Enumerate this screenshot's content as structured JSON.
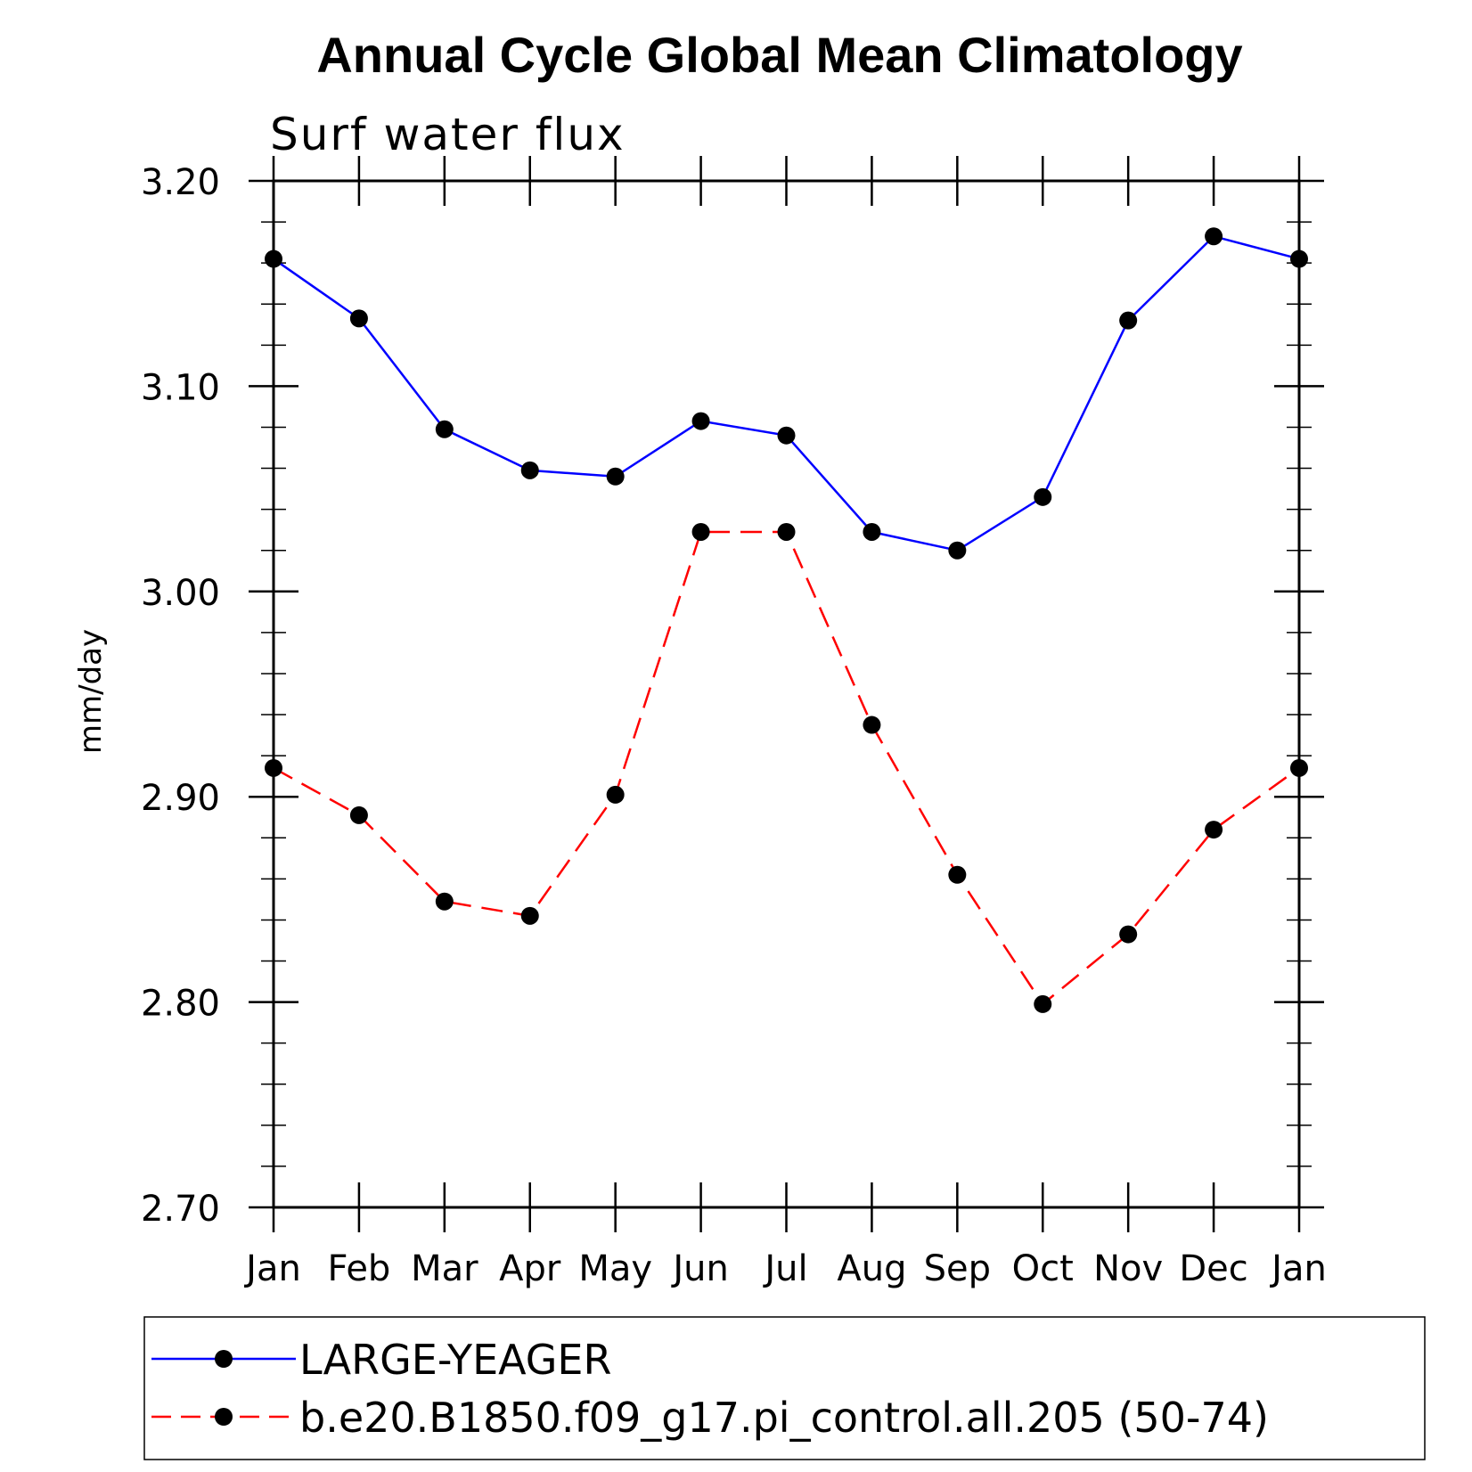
{
  "chart_data": {
    "type": "line",
    "title": "Annual Cycle Global Mean Climatology",
    "subtitle": "Surf water flux",
    "ylabel": "mm/day",
    "xlabel": "",
    "categories": [
      "Jan",
      "Feb",
      "Mar",
      "Apr",
      "May",
      "Jun",
      "Jul",
      "Aug",
      "Sep",
      "Oct",
      "Nov",
      "Dec",
      "Jan"
    ],
    "ylim": [
      2.7,
      3.2
    ],
    "yticks": [
      2.7,
      2.8,
      2.9,
      3.0,
      3.1,
      3.2
    ],
    "ytick_labels": [
      "2.70",
      "2.80",
      "2.90",
      "3.00",
      "3.10",
      "3.20"
    ],
    "y_minor_step": 0.02,
    "grid": false,
    "legend_position": "bottom",
    "series": [
      {
        "name": "LARGE-YEAGER",
        "color": "#0000ff",
        "dash": "solid",
        "marker": "filled-circle",
        "values": [
          3.162,
          3.133,
          3.079,
          3.059,
          3.056,
          3.083,
          3.076,
          3.029,
          3.02,
          3.046,
          3.132,
          3.173,
          3.162
        ]
      },
      {
        "name": "b.e20.B1850.f09_g17.pi_control.all.205 (50-74)",
        "color": "#ff0000",
        "dash": "dashed",
        "marker": "filled-circle",
        "values": [
          2.914,
          2.891,
          2.849,
          2.842,
          2.901,
          3.029,
          3.029,
          2.935,
          2.862,
          2.799,
          2.833,
          2.884,
          2.914
        ]
      }
    ]
  }
}
